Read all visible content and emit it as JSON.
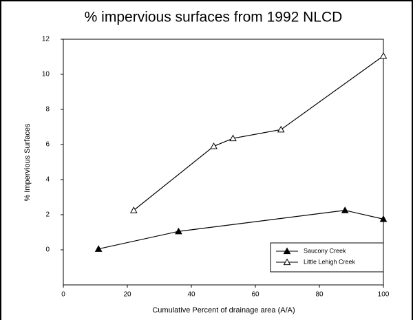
{
  "chart_data": {
    "type": "line",
    "title": "% impervious surfaces from 1992 NLCD",
    "x_label": "Cumulative Percent of drainage area (A/A)",
    "y_label": "% Impervious Surfaces",
    "xlim": [
      0,
      100
    ],
    "xticks": [
      0,
      20,
      40,
      60,
      80,
      100
    ],
    "ylim": [
      -2,
      12
    ],
    "yticks": [
      0,
      2,
      4,
      6,
      8,
      10,
      12
    ],
    "legend": "lower right",
    "series": [
      {
        "name": "Saucony Creek",
        "color": "#000000",
        "marker": "filled-triangle",
        "x": [
          11,
          36,
          88,
          100
        ],
        "values": [
          0.05,
          1.05,
          2.25,
          1.75
        ]
      },
      {
        "name": "Little Lehigh Creek",
        "color": "#000000",
        "marker": "open-triangle",
        "x": [
          22,
          47,
          53,
          68,
          100
        ],
        "values": [
          2.25,
          5.9,
          6.35,
          6.85,
          11.05
        ]
      }
    ]
  }
}
